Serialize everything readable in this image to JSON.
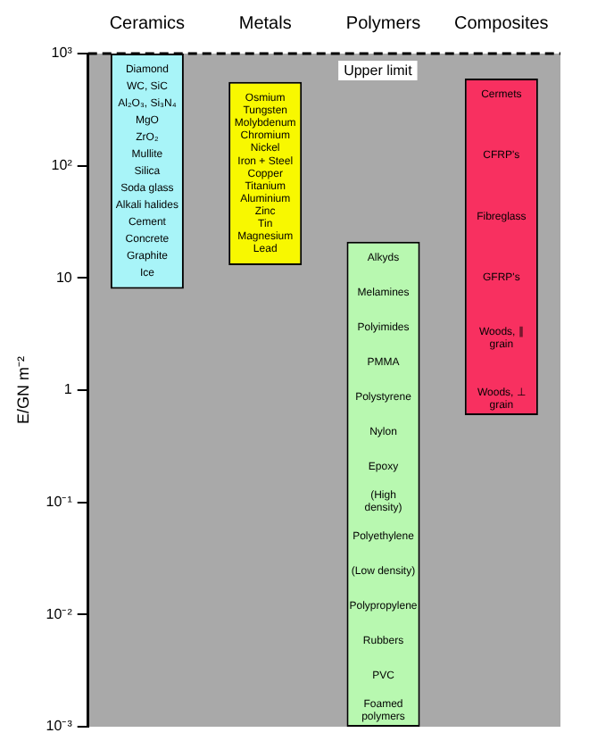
{
  "chart_data": {
    "type": "bar",
    "categories": [
      "Ceramics",
      "Metals",
      "Polymers",
      "Composites"
    ],
    "base": [
      8,
      13,
      0.001,
      0.6
    ],
    "values": [
      992,
      547,
      21,
      599.4
    ],
    "colors": [
      "#a8f4f8",
      "#f8f800",
      "#b8f8b0",
      "#f83060"
    ],
    "ylim": [
      0.001,
      1000
    ],
    "log": "y",
    "yticks": [
      {
        "value": 0.001,
        "label": "10⁻³"
      },
      {
        "value": 0.01,
        "label": "10⁻²"
      },
      {
        "value": 0.1,
        "label": "10⁻¹"
      },
      1,
      10,
      {
        "value": 100,
        "label": "10²"
      },
      {
        "value": 1000,
        "label": "10³"
      }
    ],
    "ylabel": "E/GN m⁻²",
    "ref_lines": [
      {
        "axis": "y",
        "value": 1000,
        "label": "Upper limit",
        "line_style": "dashed"
      }
    ],
    "annotations": [
      "Diamond\nWC, SiC\nAl₂O₃, Si₃N₄\nMgO\nZrO₂\nMullite\nSilica\nSoda glass\nAlkali halides\nCement\nConcrete\nGraphite\nIce",
      "Osmium\nTungsten\nMolybdenum\nChromium\nNickel\nIron + Steel\nCopper\nTitanium\nAluminium\nZinc\nTin\nMagnesium\nLead",
      "Alkyds\nMelamines\nPolyimides\nPMMA\nPolystyrene\nNylon\nEpoxy\n(High density)\nPolyethylene\n(Low density)\nPolypropylene\nRubbers\nPVC\nFoamed polymers",
      "Cermets\nCFRP's\nFibreglass\nGFRP's\nWoods, ∥ grain\nWoods, ⊥ grain"
    ]
  }
}
